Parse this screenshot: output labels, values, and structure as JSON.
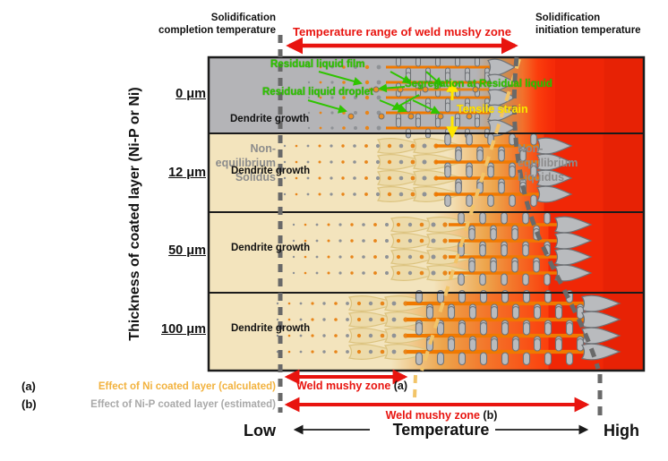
{
  "colors": {
    "red_accent": "#E8140F",
    "green_label": "#2FC400",
    "yellow_label": "#FFE600",
    "solidus_line_yellow": "#F2C468",
    "liquidus_line_gray": "#696969",
    "gray_label": "#8C8C8C",
    "legend_a_color": "#F2B23E",
    "legend_b_color": "#A9A9A9",
    "band_gray": "#B4B4B7",
    "band_cream": "#F3E4BD",
    "gradient_red": "#EE2506"
  },
  "header": {
    "left": [
      "Solidification",
      "completion temperature"
    ],
    "center": "Temperature range of weld mushy zone",
    "right": [
      "Solidification",
      "initiation temperature"
    ]
  },
  "y_axis": {
    "title": "Thickness of coated layer (Ni-P or Ni)",
    "ticks": [
      "0 μm",
      "12 μm",
      "50 μm",
      "100 μm"
    ]
  },
  "annotations": {
    "residual_liquid_film": "Residual liquid film",
    "residual_liquid_droplet": "Residual liquid droplet",
    "segregation": "Segregation at Residual liquid",
    "tensile_strain": "Tensile strain",
    "dendrite_growth": "Dendrite growth",
    "noneq_solidus": [
      "Non-",
      "equilibrium",
      "Solidus"
    ],
    "noneq_liquidus": [
      "Non-",
      "equilibrium",
      "Liquidus"
    ]
  },
  "legend": {
    "a_key": "(a)",
    "a_text": "Effect of Ni coated layer (calculated)",
    "b_key": "(b)",
    "b_text": "Effect of Ni-P coated layer (estimated)"
  },
  "bottom": {
    "mushy_a_main": "Weld mushy zone",
    "mushy_a_suffix": "(a)",
    "mushy_b_main": "Weld mushy zone",
    "mushy_b_suffix": "(b)",
    "low": "Low",
    "temperature": "Temperature",
    "high": "High"
  }
}
